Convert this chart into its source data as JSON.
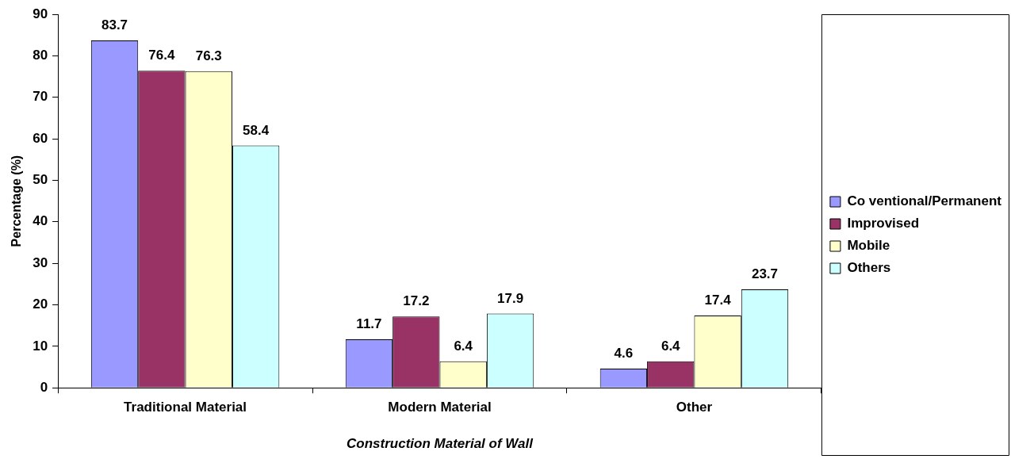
{
  "chart_data": {
    "type": "bar",
    "xlabel": "Construction Material of Wall",
    "ylabel": "Percentage (%)",
    "categories": [
      "Traditional Material",
      "Modern Material",
      "Other"
    ],
    "series": [
      {
        "name": "Co ventional/Permanent",
        "color": "#9999ff",
        "values": [
          83.7,
          11.7,
          4.6
        ]
      },
      {
        "name": "Improvised",
        "color": "#993366",
        "values": [
          76.4,
          17.2,
          6.4
        ]
      },
      {
        "name": "Mobile",
        "color": "#ffffcc",
        "values": [
          76.3,
          6.4,
          17.4
        ]
      },
      {
        "name": "Others",
        "color": "#ccffff",
        "values": [
          58.4,
          17.9,
          23.7
        ]
      }
    ],
    "ylim": [
      0,
      90
    ],
    "yticks": [
      0,
      10,
      20,
      30,
      40,
      50,
      60,
      70,
      80,
      90
    ],
    "grid": false,
    "legend": "right",
    "data_labels": true
  }
}
